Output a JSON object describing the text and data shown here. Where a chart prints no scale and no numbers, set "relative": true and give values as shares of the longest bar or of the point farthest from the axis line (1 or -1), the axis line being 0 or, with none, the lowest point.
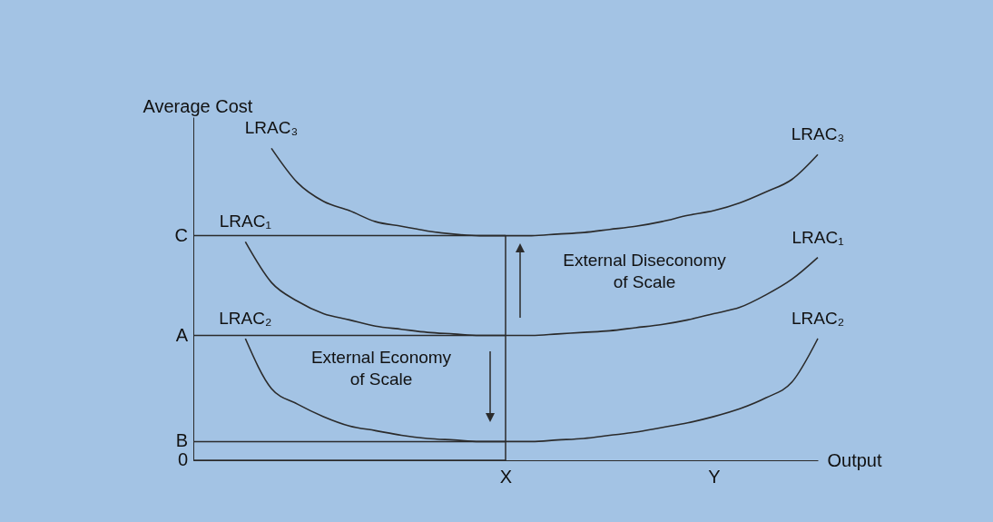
{
  "chart_data": {
    "type": "line",
    "relative": true,
    "xlabel": "Output",
    "ylabel": "Average Cost",
    "categories": [
      null,
      null,
      null,
      null,
      null,
      null,
      null,
      null,
      null,
      null,
      null,
      null,
      "X",
      null,
      null,
      null,
      null,
      null,
      null,
      null,
      "Y",
      null,
      null,
      null,
      null
    ],
    "series": [
      {
        "name": "LRAC₃",
        "color": "#2b2b2b",
        "values": [
          null,
          null,
          null,
          1.0,
          0.89,
          0.83,
          0.8,
          0.765,
          0.75,
          0.735,
          0.725,
          0.72,
          0.72,
          0.72,
          0.725,
          0.73,
          0.74,
          0.75,
          0.765,
          0.785,
          0.8,
          0.825,
          0.86,
          0.9,
          0.98
        ]
      },
      {
        "name": "LRAC₁",
        "color": "#2b2b2b",
        "values": [
          null,
          null,
          0.7,
          0.57,
          0.51,
          0.47,
          0.45,
          0.43,
          0.42,
          0.41,
          0.405,
          0.4,
          0.4,
          0.4,
          0.405,
          0.41,
          0.415,
          0.425,
          0.435,
          0.45,
          0.47,
          0.49,
          0.53,
          0.58,
          0.65
        ]
      },
      {
        "name": "LRAC₂",
        "color": "#2b2b2b",
        "values": [
          null,
          null,
          0.39,
          0.23,
          0.18,
          0.14,
          0.11,
          0.095,
          0.08,
          0.07,
          0.065,
          0.06,
          0.06,
          0.06,
          0.065,
          0.07,
          0.08,
          0.09,
          0.105,
          0.12,
          0.14,
          0.165,
          0.2,
          0.25,
          0.39
        ]
      }
    ],
    "ref_lines": [
      {
        "axis": "y",
        "value": 0.72,
        "label": "C",
        "color": "#2b2b2b"
      },
      {
        "axis": "y",
        "value": 0.4,
        "label": "A",
        "color": "#2b2b2b"
      },
      {
        "axis": "y",
        "value": 0.06,
        "label": "B",
        "color": "#2b2b2b"
      },
      {
        "axis": "y",
        "value": 0,
        "label": "0",
        "color": "#2b2b2b"
      },
      {
        "axis": "x",
        "value": "X",
        "label": null,
        "color": "#2b2b2b"
      }
    ],
    "annotations": [
      "External Diseconomy\nof Scale",
      "External Economy\nof Scale"
    ]
  }
}
